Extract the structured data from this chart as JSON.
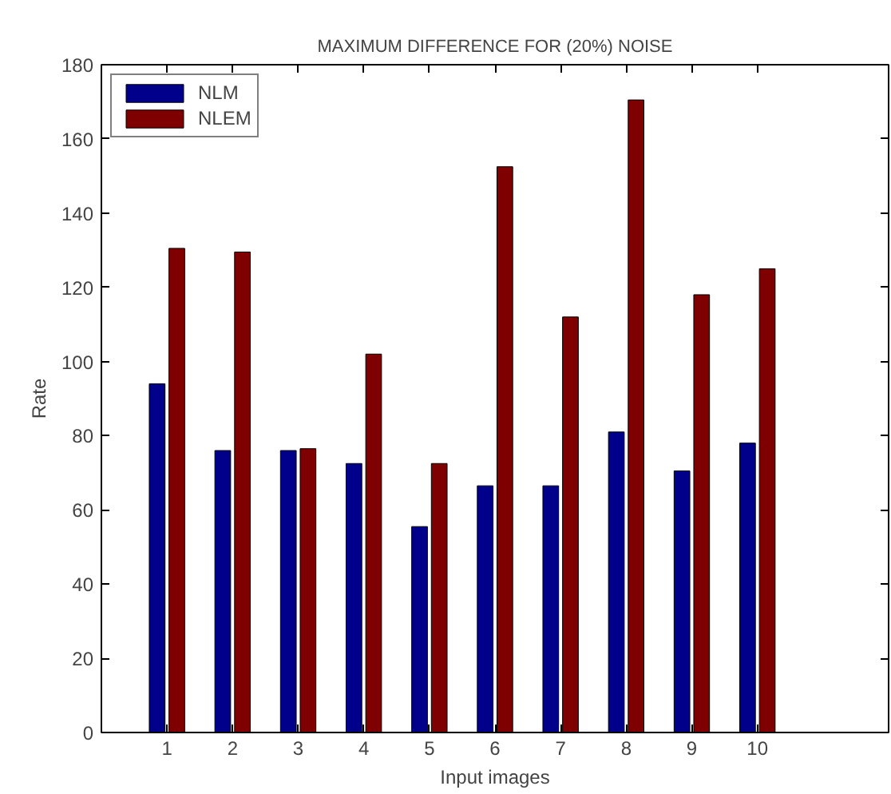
{
  "chart_data": {
    "type": "bar",
    "title": "MAXIMUM DIFFERENCE FOR (20%) NOISE",
    "xlabel": "Input images",
    "ylabel": "Rate",
    "x": [
      1,
      2,
      3,
      4,
      5,
      6,
      7,
      8,
      9,
      10
    ],
    "series": [
      {
        "name": "NLM",
        "color": "#00008b",
        "values": [
          94,
          76,
          76,
          72.5,
          55.5,
          66.5,
          66.5,
          81,
          70.5,
          78
        ]
      },
      {
        "name": "NLEM",
        "color": "#7f0000",
        "values": [
          130.5,
          129.5,
          76.5,
          102,
          72.5,
          152.5,
          112,
          170.5,
          118,
          125
        ]
      }
    ],
    "xlim": [
      0,
      12
    ],
    "xticks": [
      1,
      2,
      3,
      4,
      5,
      6,
      7,
      8,
      9,
      10
    ],
    "ylim": [
      0,
      180
    ],
    "yticks": [
      0,
      20,
      40,
      60,
      80,
      100,
      120,
      140,
      160,
      180
    ],
    "grid": false,
    "legend": "top left"
  }
}
